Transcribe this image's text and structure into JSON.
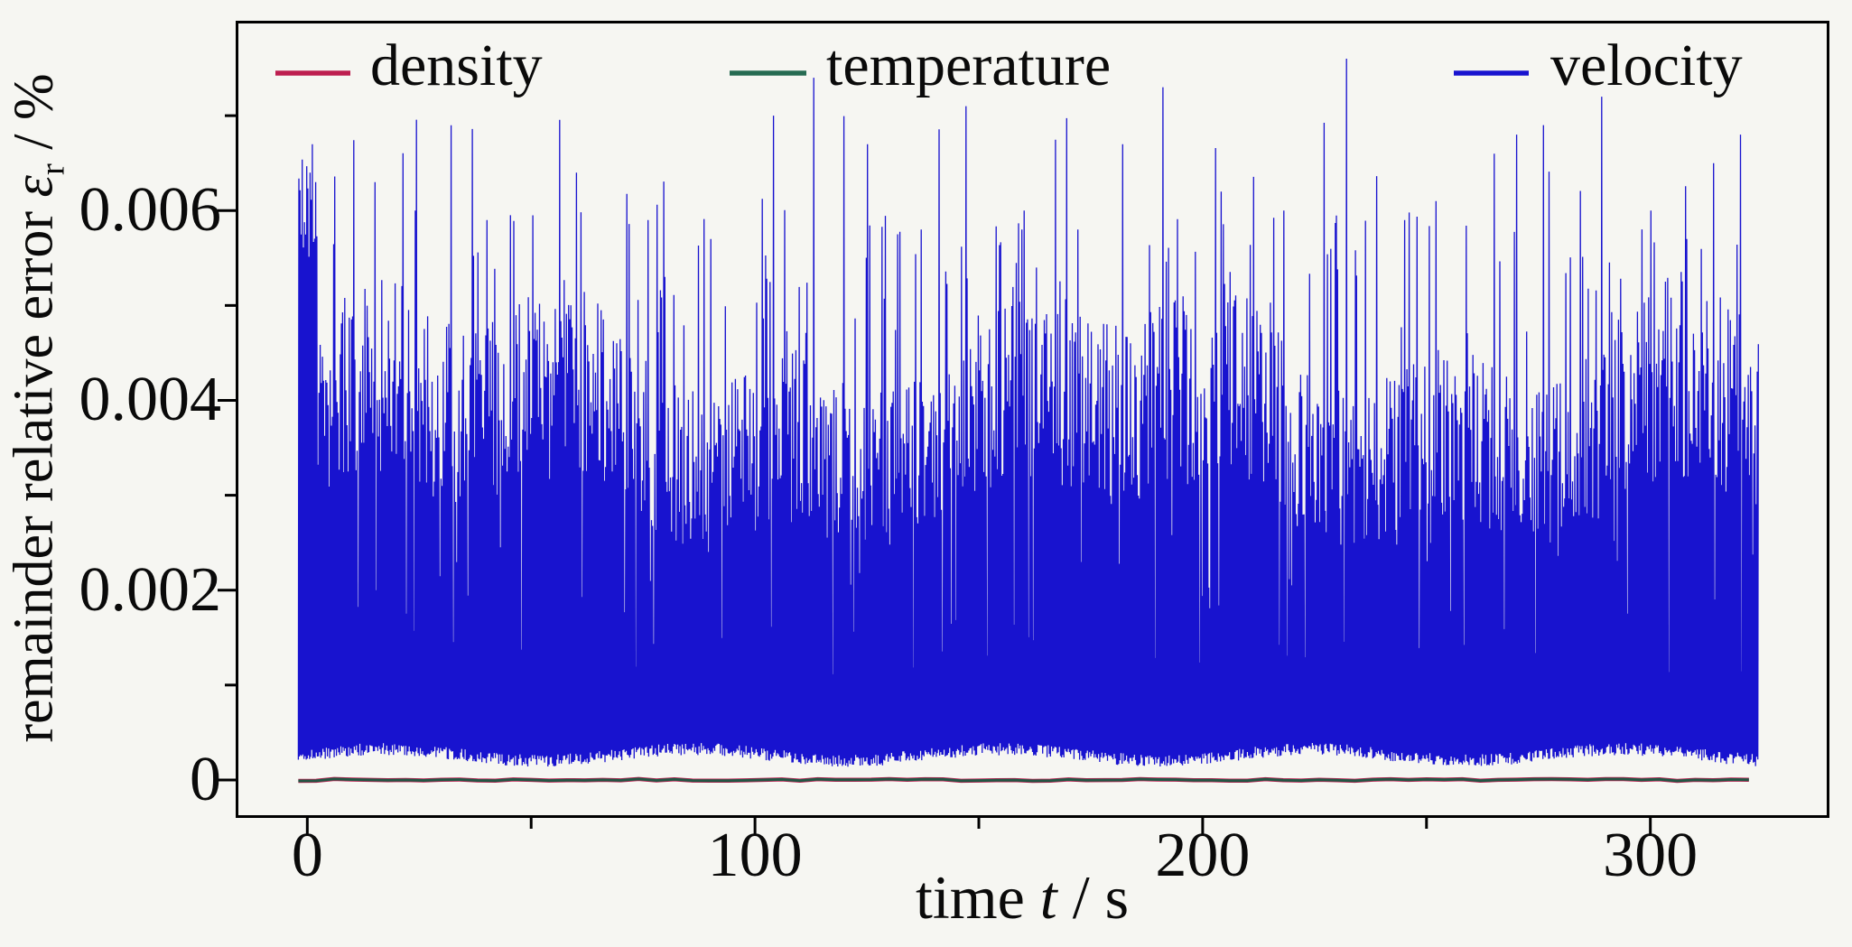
{
  "figure": {
    "background": "#f6f6f2",
    "frame_color": "#000000",
    "text_color": "#0a0a0a"
  },
  "legend": {
    "items": [
      {
        "label": "density",
        "color": "#bd1e4f"
      },
      {
        "label": "temperature",
        "color": "#266b52"
      },
      {
        "label": "velocity",
        "color": "#1813cf"
      }
    ]
  },
  "x_axis": {
    "label_prefix": "time ",
    "label_var": "t",
    "label_suffix": " / s",
    "tick_labels": [
      "0",
      "100",
      "200",
      "300"
    ],
    "tick_values": [
      0,
      100,
      200,
      300
    ],
    "minor_tick_values": [
      50,
      150,
      250
    ],
    "lim": [
      -16,
      340
    ]
  },
  "y_axis": {
    "label_prefix": "remainder relative error  ",
    "label_var": "ε",
    "label_sub": "r",
    "label_suffix": " / %",
    "tick_labels": [
      "0",
      "0.002",
      "0.004",
      "0.006"
    ],
    "tick_values": [
      0,
      0.002,
      0.004,
      0.006
    ],
    "minor_tick_values": [
      0.001,
      0.003,
      0.005,
      0.007
    ],
    "lim": [
      -0.0004,
      0.008
    ]
  },
  "chart_data": {
    "type": "line",
    "title": "",
    "xlabel": "time t / s",
    "ylabel": "remainder relative error ε_r / %",
    "xlim": [
      -16,
      340
    ],
    "ylim": [
      -0.0004,
      0.008
    ],
    "x_ticks": [
      0,
      100,
      200,
      300
    ],
    "y_ticks": [
      0,
      0.002,
      0.004,
      0.006
    ],
    "x_minor_step": 50,
    "y_minor_step": 0.001,
    "grid": false,
    "legend_position": "upper center, 3 columns, frameless",
    "series": [
      {
        "name": "density",
        "color": "#bd1e4f",
        "shape": "flat",
        "t_range": [
          -2,
          324
        ],
        "value": 0.0
      },
      {
        "name": "temperature",
        "color": "#215644",
        "shape": "flat",
        "t_range": [
          -2,
          324
        ],
        "value": 0.0
      },
      {
        "name": "velocity",
        "color": "#1813cf",
        "shape": "noise_spikes",
        "t_range": [
          -2,
          324
        ],
        "baseline_range": [
          0.00018,
          0.0004
        ],
        "typical_peak_band": [
          0.0028,
          0.0047
        ],
        "tall_peak_band": [
          0.0047,
          0.006
        ],
        "max_peak": 0.0076,
        "generator": {
          "seed": 1337,
          "dt": 0.25,
          "baseline": {
            "base": 0.0002,
            "rand": 0.00013,
            "wave_amp": 6e-05,
            "wave_period": 11
          },
          "peak_low": {
            "prob": 0.05,
            "min": 0.0011,
            "rand": 0.0015
          },
          "peak_mid": {
            "min": 0.0028,
            "rand": 0.0019
          },
          "peak_tall": {
            "prob": 0.07,
            "min": 0.0047,
            "rand": 0.0013
          },
          "peak_xtall": {
            "prob": 0.02,
            "min": 0.0059,
            "rand": 0.0011
          },
          "env_mod": {
            "amp1": 0.1,
            "period1": 23,
            "amp2": 0.07,
            "period2": 7.7
          },
          "start_cluster": {
            "t_max": 2.2,
            "min_peak": 0.0055,
            "rand": 0.0013
          },
          "feature_peaks": [
            [
              0.5,
              0.0064
            ],
            [
              1,
              0.0067
            ],
            [
              1.75,
              0.0063
            ],
            [
              15,
              0.0063
            ],
            [
              24,
              0.006
            ],
            [
              40,
              0.0059
            ],
            [
              60,
              0.0064
            ],
            [
              76,
              0.0059
            ],
            [
              90,
              0.0057
            ],
            [
              104,
              0.007
            ],
            [
              113,
              0.0074
            ],
            [
              125,
              0.0067
            ],
            [
              137,
              0.0058
            ],
            [
              147,
              0.0071
            ],
            [
              160,
              0.006
            ],
            [
              172,
              0.0058
            ],
            [
              182,
              0.0067
            ],
            [
              191,
              0.0073
            ],
            [
              204,
              0.0062
            ],
            [
              218,
              0.006
            ],
            [
              232,
              0.0076
            ],
            [
              245,
              0.0059
            ],
            [
              252,
              0.0061
            ],
            [
              265,
              0.0066
            ],
            [
              270,
              0.0068
            ],
            [
              276,
              0.0069
            ],
            [
              289,
              0.0072
            ],
            [
              300,
              0.006
            ],
            [
              308,
              0.0057
            ],
            [
              314,
              0.0065
            ],
            [
              320,
              0.0068
            ]
          ]
        }
      }
    ]
  }
}
